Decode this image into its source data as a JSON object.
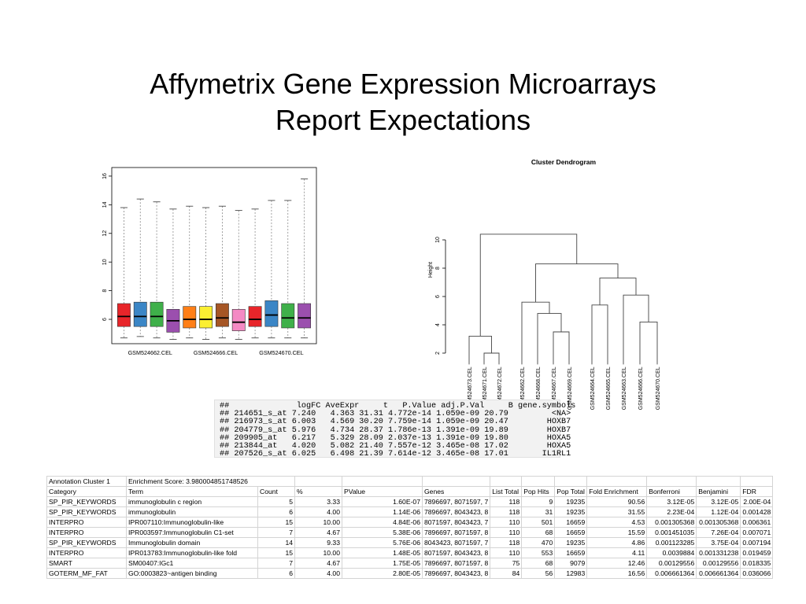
{
  "slide": {
    "title_line1": "Affymetrix Gene Expression Microarrays",
    "title_line2": "Report Expectations"
  },
  "boxplot": {
    "y_ticks": [
      "6",
      "8",
      "10",
      "12",
      "14",
      "16"
    ],
    "x_labels": [
      "GSM524662.CEL",
      "GSM524666.CEL",
      "GSM524670.CEL"
    ],
    "ylim": [
      4.3,
      16.6
    ],
    "colors": [
      "#e8252a",
      "#3b86c6",
      "#3fb04a",
      "#9b4fae",
      "#ff7f17",
      "#fbef32",
      "#a65625",
      "#f48ac4",
      "#e8252a",
      "#3b86c6",
      "#3fb04a",
      "#9b4fae"
    ],
    "boxes": [
      {
        "min": 4.7,
        "q1": 5.5,
        "med": 6.2,
        "q3": 7.1,
        "max": 13.8
      },
      {
        "min": 4.8,
        "q1": 5.5,
        "med": 6.2,
        "q3": 7.2,
        "max": 14.4
      },
      {
        "min": 4.7,
        "q1": 5.5,
        "med": 6.2,
        "q3": 7.2,
        "max": 14.2
      },
      {
        "min": 4.6,
        "q1": 5.1,
        "med": 5.9,
        "q3": 6.7,
        "max": 13.7
      },
      {
        "min": 4.7,
        "q1": 5.4,
        "med": 6.0,
        "q3": 6.9,
        "max": 13.9
      },
      {
        "min": 4.6,
        "q1": 5.4,
        "med": 6.0,
        "q3": 6.9,
        "max": 13.8
      },
      {
        "min": 4.7,
        "q1": 5.5,
        "med": 6.1,
        "q3": 7.1,
        "max": 13.9
      },
      {
        "min": 4.6,
        "q1": 5.2,
        "med": 5.8,
        "q3": 6.7,
        "max": 13.6
      },
      {
        "min": 4.7,
        "q1": 5.5,
        "med": 6.0,
        "q3": 6.9,
        "max": 13.7
      },
      {
        "min": 4.7,
        "q1": 5.5,
        "med": 6.3,
        "q3": 7.3,
        "max": 14.3
      },
      {
        "min": 4.7,
        "q1": 5.4,
        "med": 6.1,
        "q3": 7.1,
        "max": 14.3
      },
      {
        "min": 4.7,
        "q1": 5.4,
        "med": 6.1,
        "q3": 7.1,
        "max": 15.8
      }
    ]
  },
  "dendrogram": {
    "title": "Cluster Dendrogram",
    "ylabel": "Height",
    "y_ticks": [
      "2",
      "4",
      "6",
      "8",
      "10"
    ],
    "leaves": [
      "GSM524673.CEL",
      "GSM524671.CEL",
      "GSM524672.CEL",
      "GSM524662.CEL",
      "GSM524668.CEL",
      "GSM524667.CEL",
      "GSM524669.CEL",
      "GSM524664.CEL",
      "GSM524665.CEL",
      "GSM524663.CEL",
      "GSM524666.CEL",
      "GSM524670.CEL"
    ]
  },
  "r_output": {
    "lines": [
      "##              logFC AveExpr     t   P.Value adj.P.Val     B gene.symbols",
      "## 214651_s_at 7.240   4.363 31.31 4.772e-14 1.059e-09 20.79         <NA>",
      "## 216973_s_at 6.003   4.569 30.20 7.759e-14 1.059e-09 20.47        HOXB7",
      "## 204779_s_at 5.976   4.734 28.37 1.786e-13 1.391e-09 19.89        HOXB7",
      "## 209905_at   6.217   5.329 28.09 2.037e-13 1.391e-09 19.80        HOXA5",
      "## 213844_at   4.020   5.082 21.40 7.557e-12 3.465e-08 17.02        HOXA5",
      "## 207526_s_at 6.025   6.498 21.39 7.614e-12 3.465e-08 17.01       IL1RL1"
    ]
  },
  "enrichment_table": {
    "cluster_label": "Annotation Cluster 1",
    "enrichment_score": "Enrichment Score: 3.980004851748526",
    "headers": [
      "Category",
      "Term",
      "Count",
      "%",
      "PValue",
      "Genes",
      "List Total",
      "Pop Hits",
      "Pop Total",
      "Fold Enrichment",
      "Bonferroni",
      "Benjamini",
      "FDR"
    ],
    "rows": [
      [
        "SP_PIR_KEYWORDS",
        "immunoglobulin c region",
        "5",
        "3.33",
        "1.60E-07",
        "7896697, 8071597, 7",
        "118",
        "9",
        "19235",
        "90.56",
        "3.12E-05",
        "3.12E-05",
        "2.00E-04"
      ],
      [
        "SP_PIR_KEYWORDS",
        "immunoglobulin",
        "6",
        "4.00",
        "1.14E-06",
        "7896697, 8043423, 8",
        "118",
        "31",
        "19235",
        "31.55",
        "2.23E-04",
        "1.12E-04",
        "0.001428"
      ],
      [
        "INTERPRO",
        "IPR007110:Immunoglobulin-like",
        "15",
        "10.00",
        "4.84E-06",
        "8071597, 8043423, 7",
        "110",
        "501",
        "16659",
        "4.53",
        "0.001305368",
        "0.001305368",
        "0.006361"
      ],
      [
        "INTERPRO",
        "IPR003597:Immunoglobulin C1-set",
        "7",
        "4.67",
        "5.38E-06",
        "7896697, 8071597, 8",
        "110",
        "68",
        "16659",
        "15.59",
        "0.001451035",
        "7.26E-04",
        "0.007071"
      ],
      [
        "SP_PIR_KEYWORDS",
        "Immunoglobulin domain",
        "14",
        "9.33",
        "5.76E-06",
        "8043423, 8071597, 7",
        "118",
        "470",
        "19235",
        "4.86",
        "0.001123285",
        "3.75E-04",
        "0.007194"
      ],
      [
        "INTERPRO",
        "IPR013783:Immunoglobulin-like fold",
        "15",
        "10.00",
        "1.48E-05",
        "8071597, 8043423, 8",
        "110",
        "553",
        "16659",
        "4.11",
        "0.0039884",
        "0.001331238",
        "0.019459"
      ],
      [
        "SMART",
        "SM00407:IGc1",
        "7",
        "4.67",
        "1.75E-05",
        "7896697, 8071597, 8",
        "75",
        "68",
        "9079",
        "12.46",
        "0.00129556",
        "0.00129556",
        "0.018335"
      ],
      [
        "GOTERM_MF_FAT",
        "GO:0003823~antigen binding",
        "6",
        "4.00",
        "2.80E-05",
        "7896697, 8043423, 8",
        "84",
        "56",
        "12983",
        "16.56",
        "0.006661364",
        "0.006661364",
        "0.036066"
      ]
    ]
  }
}
